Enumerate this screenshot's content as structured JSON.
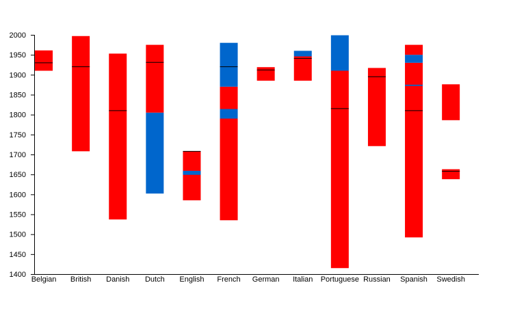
{
  "chart_data": {
    "type": "bar",
    "subtype": "floating-range",
    "title": "",
    "xlabel": "",
    "ylabel": "",
    "ylim": [
      1400,
      2000
    ],
    "yticks": [
      1400,
      1450,
      1500,
      1550,
      1600,
      1650,
      1700,
      1750,
      1800,
      1850,
      1900,
      1950,
      2000
    ],
    "grid": false,
    "colors": {
      "red": "#ff0000",
      "blue": "#0066cc",
      "marker": "#000000"
    },
    "categories": [
      "Belgian",
      "British",
      "Danish",
      "Dutch",
      "English",
      "French",
      "German",
      "Italian",
      "Portuguese",
      "Russian",
      "Spanish",
      "Swedish"
    ],
    "bars": [
      {
        "category": "Belgian",
        "segments": [
          {
            "from": 1910,
            "to": 1961,
            "color": "red"
          }
        ],
        "markers": [
          1930
        ]
      },
      {
        "category": "British",
        "segments": [
          {
            "from": 1708,
            "to": 1997,
            "color": "red"
          }
        ],
        "markers": [
          1920
        ]
      },
      {
        "category": "Danish",
        "segments": [
          {
            "from": 1537,
            "to": 1953,
            "color": "red"
          }
        ],
        "markers": [
          1810
        ]
      },
      {
        "category": "Dutch",
        "segments": [
          {
            "from": 1602,
            "to": 1805,
            "color": "blue"
          },
          {
            "from": 1805,
            "to": 1975,
            "color": "red"
          }
        ],
        "markers": [
          1931
        ]
      },
      {
        "category": "English",
        "segments": [
          {
            "from": 1585,
            "to": 1708,
            "color": "red"
          },
          {
            "from": 1649,
            "to": 1659,
            "color": "blue"
          }
        ],
        "markers": [
          1708
        ]
      },
      {
        "category": "French",
        "segments": [
          {
            "from": 1535,
            "to": 1790,
            "color": "red"
          },
          {
            "from": 1790,
            "to": 1814,
            "color": "blue"
          },
          {
            "from": 1814,
            "to": 1870,
            "color": "red"
          },
          {
            "from": 1870,
            "to": 1980,
            "color": "blue"
          }
        ],
        "markers": [
          1920
        ]
      },
      {
        "category": "German",
        "segments": [
          {
            "from": 1885,
            "to": 1919,
            "color": "red"
          }
        ],
        "markers": [
          1912
        ]
      },
      {
        "category": "Italian",
        "segments": [
          {
            "from": 1885,
            "to": 1946,
            "color": "red"
          },
          {
            "from": 1946,
            "to": 1960,
            "color": "blue"
          }
        ],
        "markers": [
          1941
        ]
      },
      {
        "category": "Portuguese",
        "segments": [
          {
            "from": 1415,
            "to": 1910,
            "color": "red"
          },
          {
            "from": 1910,
            "to": 1999,
            "color": "blue"
          }
        ],
        "markers": [
          1815
        ]
      },
      {
        "category": "Russian",
        "segments": [
          {
            "from": 1721,
            "to": 1917,
            "color": "red"
          }
        ],
        "markers": [
          1895
        ]
      },
      {
        "category": "Spanish",
        "segments": [
          {
            "from": 1492,
            "to": 1930,
            "color": "red"
          },
          {
            "from": 1872,
            "to": 1875,
            "color": "blue"
          },
          {
            "from": 1930,
            "to": 1950,
            "color": "blue"
          },
          {
            "from": 1950,
            "to": 1975,
            "color": "red"
          }
        ],
        "markers": [
          1810
        ]
      },
      {
        "category": "Swedish",
        "segments": [
          {
            "from": 1638,
            "to": 1663,
            "color": "red"
          },
          {
            "from": 1786,
            "to": 1876,
            "color": "red"
          }
        ],
        "markers": [
          1658
        ]
      }
    ]
  }
}
